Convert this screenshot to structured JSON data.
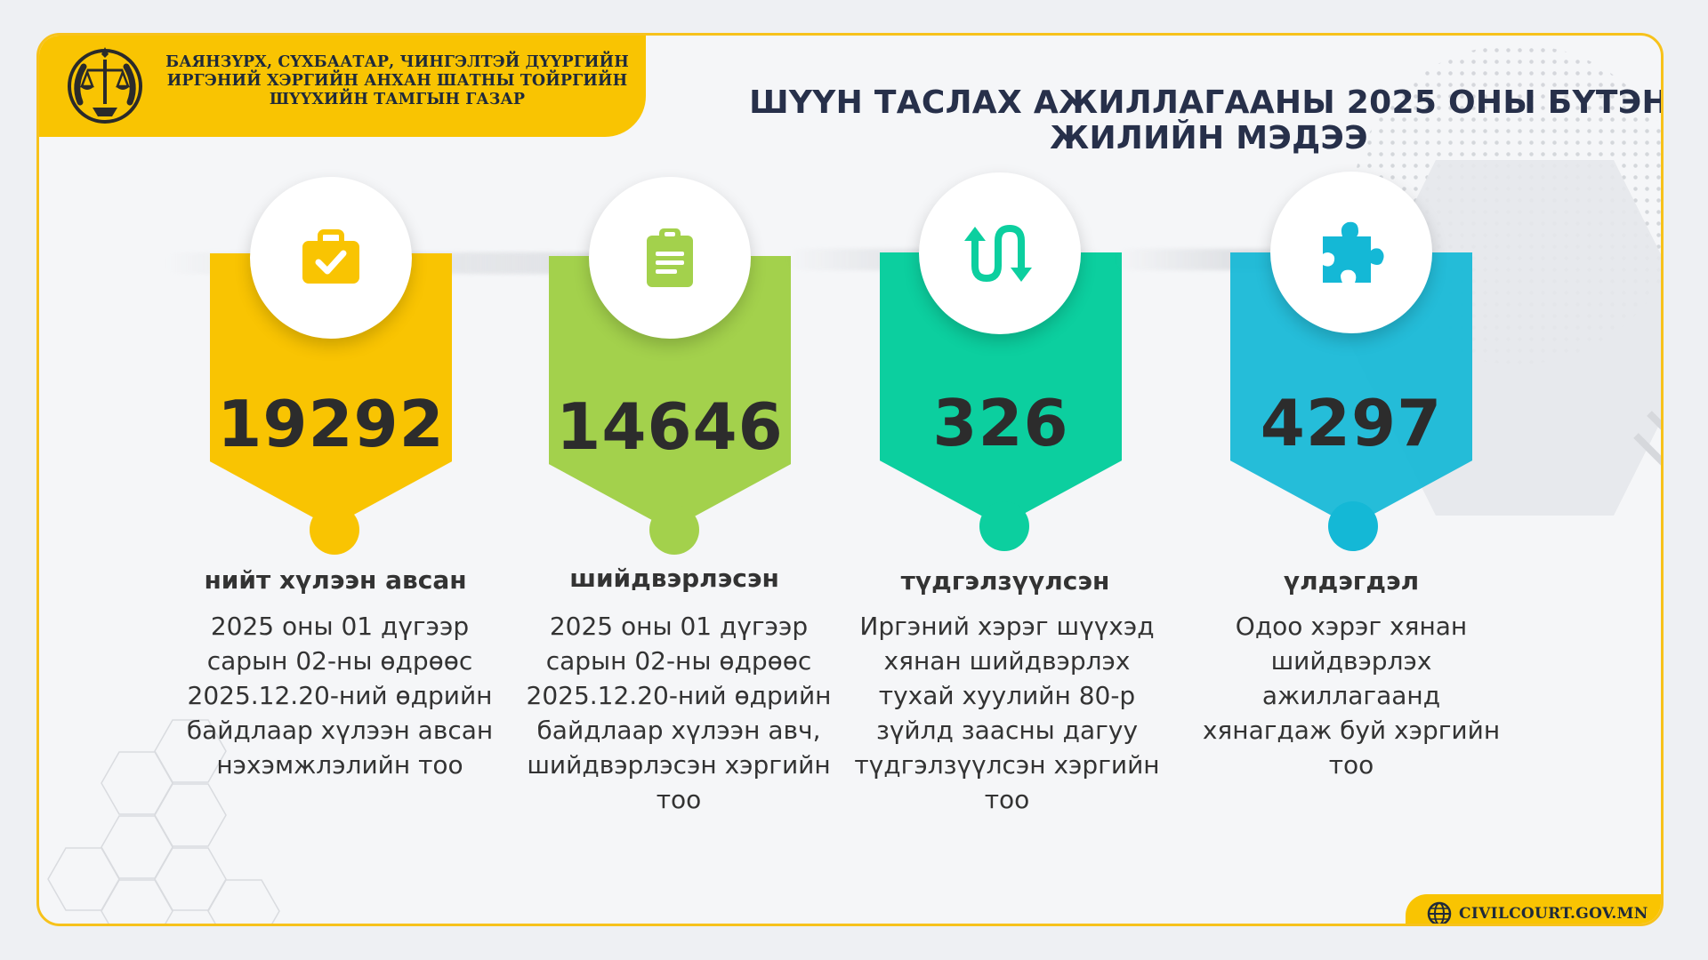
{
  "header": {
    "org_lines": [
      "БАЯНЗҮРХ, СҮХБААТАР, ЧИНГЭЛТЭЙ ДҮҮРГИЙН",
      "ИРГЭНИЙ ХЭРГИЙН АНХАН ШАТНЫ ТОЙРГИЙН",
      "ШҮҮХИЙН ТАМГЫН ГАЗАР"
    ],
    "logo_icon": "court-emblem-icon"
  },
  "title": {
    "line1": "ШҮҮН ТАСЛАХ АЖИЛЛАГААНЫ 2025 ОНЫ БҮТЭН",
    "line2": "ЖИЛИЙН МЭДЭЭ"
  },
  "stats": [
    {
      "value": "19292",
      "label": "нийт хүлээн авсан",
      "description": "2025 оны 01 дүгээр сарын 02-ны өдрөөс 2025.12.20-ний өдрийн байдлаар хүлээн авсан нэхэмжлэлийн тоо",
      "icon": "briefcase-check-icon",
      "color": "#f9c402"
    },
    {
      "value": "14646",
      "label": "шийдвэрлэсэн",
      "description": "2025 оны 01 дүгээр сарын 02-ны өдрөөс 2025.12.20-ний өдрийн байдлаар хүлээн авч, шийдвэрлэсэн хэргийн тоо",
      "icon": "clipboard-icon",
      "color": "#a3d14c"
    },
    {
      "value": "326",
      "label": "түдгэлзүүлсэн",
      "description": "Иргэний хэрэг шүүхэд хянан шийдвэрлэх тухай хуулийн 80-р зүйлд заасны дагуу түдгэлзүүлсэн хэргийн тоо",
      "icon": "swap-arrows-icon",
      "color": "#0ccf9f"
    },
    {
      "value": "4297",
      "label": "үлдэгдэл",
      "description": "Одоо хэрэг хянан шийдвэрлэх ажиллагаанд хянагдаж буй хэргийн тоо",
      "icon": "puzzle-piece-icon",
      "color": "#14b8d6"
    }
  ],
  "footer": {
    "url": "CIVILCOURT.GOV.MN",
    "icon": "globe-icon"
  }
}
